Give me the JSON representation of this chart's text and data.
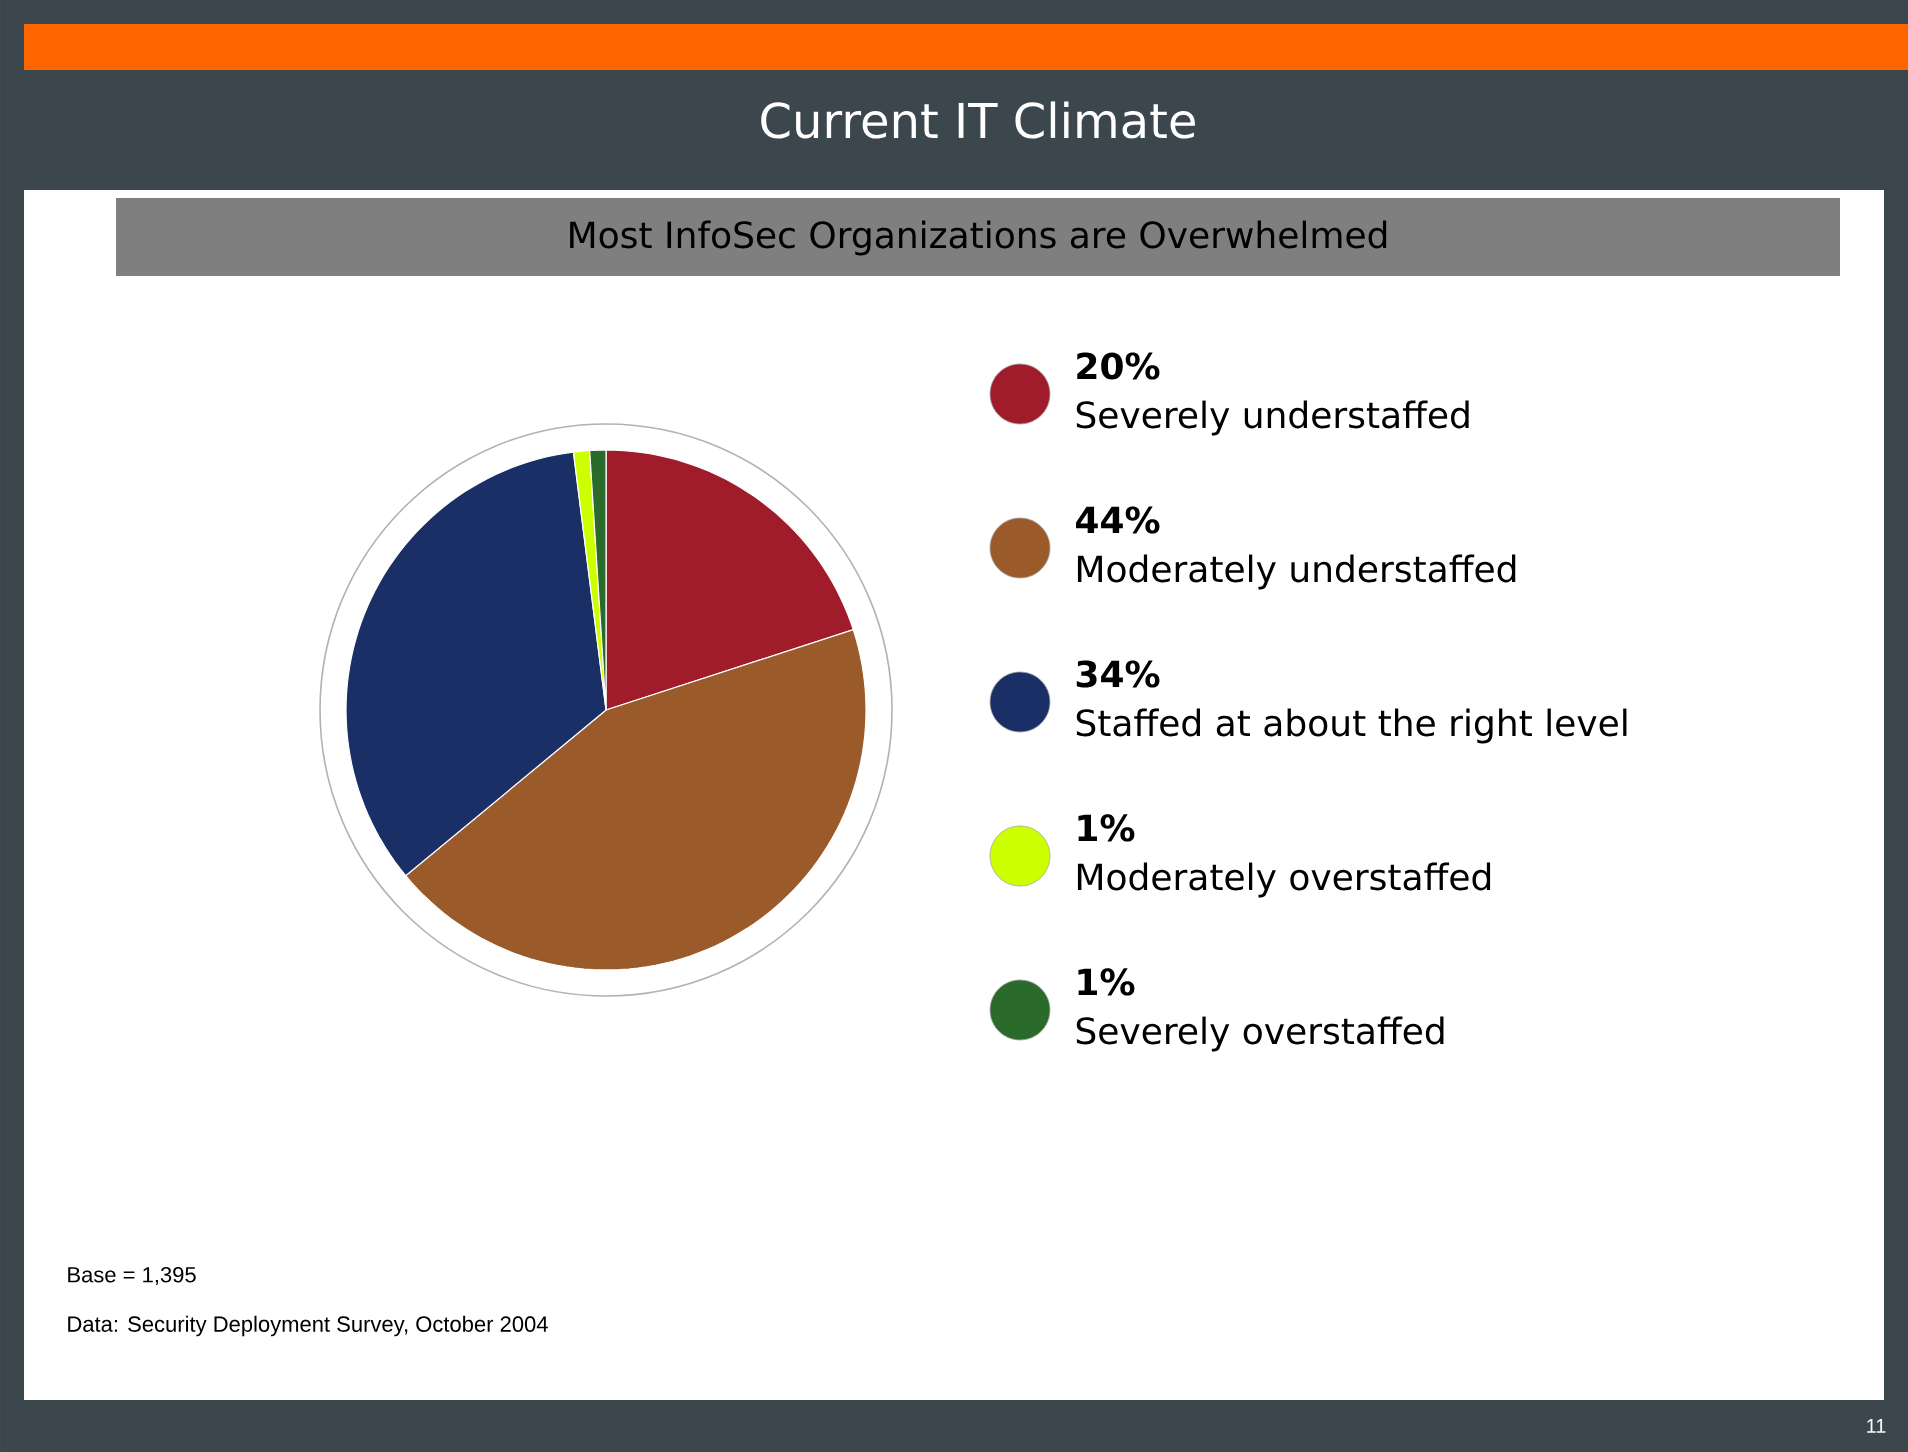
{
  "chart_data": {
    "type": "pie",
    "title": "Current IT Climate",
    "subtitle": "Most InfoSec Organizations are Overwhelmed",
    "categories": [
      "Severely understaffed",
      "Moderately understaffed",
      "Staffed at about the right level",
      "Moderately overstaffed",
      "Severely overstaffed"
    ],
    "values": [
      20,
      44,
      34,
      1,
      1
    ],
    "value_labels": [
      "20%",
      "44%",
      "34%",
      "1%",
      "1%"
    ],
    "colors": [
      "#a01c2a",
      "#9a5a2a",
      "#1a2f66",
      "#ccff00",
      "#2a6a2a"
    ],
    "legend": "right",
    "annotations": [
      "Base = 1,395",
      "Data: Security Deployment Survey, October 2004",
      "11"
    ]
  }
}
